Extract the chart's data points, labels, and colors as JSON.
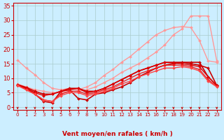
{
  "bg_color": "#cceeff",
  "grid_color": "#aacccc",
  "xlabel": "Vent moyen/en rafales ( km/h )",
  "xlabel_color": "#cc0000",
  "tick_color": "#cc0000",
  "xlim": [
    -0.5,
    23.5
  ],
  "ylim": [
    -1,
    36
  ],
  "yticks": [
    0,
    5,
    10,
    15,
    20,
    25,
    30,
    35
  ],
  "xticks": [
    0,
    1,
    2,
    3,
    4,
    5,
    6,
    7,
    8,
    9,
    10,
    11,
    12,
    13,
    14,
    15,
    16,
    17,
    18,
    19,
    20,
    21,
    22,
    23
  ],
  "lines": [
    {
      "x": [
        0,
        1,
        2,
        3,
        4,
        5,
        6,
        7,
        8,
        9,
        10,
        11,
        12,
        13,
        14,
        15,
        16,
        17,
        18,
        19,
        20,
        21,
        22,
        23
      ],
      "y": [
        16.2,
        13.5,
        11.2,
        8.5,
        6.5,
        6.0,
        6.5,
        6.0,
        7.0,
        8.5,
        11.0,
        13.0,
        15.5,
        17.5,
        20.0,
        22.5,
        25.0,
        26.5,
        27.5,
        27.8,
        27.5,
        23.0,
        16.0,
        15.5
      ],
      "color": "#ff9999",
      "lw": 1.0,
      "marker": "D",
      "ms": 2.0
    },
    {
      "x": [
        0,
        1,
        2,
        3,
        4,
        5,
        6,
        7,
        8,
        9,
        10,
        11,
        12,
        13,
        14,
        15,
        16,
        17,
        18,
        19,
        20,
        21,
        22,
        23
      ],
      "y": [
        8.0,
        7.0,
        6.0,
        5.5,
        5.0,
        5.0,
        5.5,
        5.5,
        6.0,
        7.0,
        8.5,
        10.0,
        12.0,
        13.5,
        15.0,
        17.0,
        19.0,
        21.5,
        25.0,
        27.0,
        31.5,
        31.5,
        31.5,
        16.0
      ],
      "color": "#ff9999",
      "lw": 1.0,
      "marker": "D",
      "ms": 2.0
    },
    {
      "x": [
        0,
        1,
        2,
        3,
        4,
        5,
        6,
        7,
        8,
        9,
        10,
        11,
        12,
        13,
        14,
        15,
        16,
        17,
        18,
        19,
        20,
        21,
        22,
        23
      ],
      "y": [
        7.5,
        6.5,
        4.5,
        2.0,
        1.5,
        5.5,
        6.0,
        3.0,
        2.5,
        4.5,
        5.0,
        6.0,
        7.0,
        8.5,
        10.5,
        12.0,
        13.5,
        14.5,
        15.0,
        15.5,
        15.5,
        15.5,
        10.5,
        7.5
      ],
      "color": "#cc0000",
      "lw": 1.2,
      "marker": "D",
      "ms": 2.0
    },
    {
      "x": [
        0,
        1,
        2,
        3,
        4,
        5,
        6,
        7,
        8,
        9,
        10,
        11,
        12,
        13,
        14,
        15,
        16,
        17,
        18,
        19,
        20,
        21,
        22,
        23
      ],
      "y": [
        7.8,
        6.8,
        5.5,
        4.5,
        4.5,
        5.5,
        6.5,
        6.5,
        5.5,
        5.5,
        6.5,
        8.0,
        9.5,
        11.0,
        12.5,
        13.5,
        14.5,
        15.5,
        15.5,
        15.5,
        15.0,
        14.5,
        13.5,
        7.5
      ],
      "color": "#cc0000",
      "lw": 1.2,
      "marker": "D",
      "ms": 2.0
    },
    {
      "x": [
        0,
        1,
        2,
        3,
        4,
        5,
        6,
        7,
        8,
        9,
        10,
        11,
        12,
        13,
        14,
        15,
        16,
        17,
        18,
        19,
        20,
        21,
        22,
        23
      ],
      "y": [
        7.5,
        6.5,
        5.0,
        4.0,
        4.5,
        5.5,
        6.0,
        6.5,
        5.0,
        5.5,
        6.5,
        8.0,
        9.5,
        11.0,
        12.5,
        13.5,
        14.5,
        15.5,
        15.2,
        15.0,
        14.5,
        14.0,
        10.5,
        7.5
      ],
      "color": "#dd0000",
      "lw": 1.0,
      "marker": "D",
      "ms": 2.0
    },
    {
      "x": [
        0,
        1,
        2,
        3,
        4,
        5,
        6,
        7,
        8,
        9,
        10,
        11,
        12,
        13,
        14,
        15,
        16,
        17,
        18,
        19,
        20,
        21,
        22,
        23
      ],
      "y": [
        7.5,
        6.0,
        4.5,
        2.5,
        2.0,
        4.5,
        5.5,
        5.5,
        4.5,
        5.0,
        6.0,
        7.0,
        8.5,
        10.0,
        11.5,
        12.5,
        13.5,
        14.5,
        14.5,
        14.5,
        14.0,
        13.0,
        9.5,
        7.2
      ],
      "color": "#ee2222",
      "lw": 1.0,
      "marker": "D",
      "ms": 2.0
    },
    {
      "x": [
        0,
        1,
        2,
        3,
        4,
        5,
        6,
        7,
        8,
        9,
        10,
        11,
        12,
        13,
        14,
        15,
        16,
        17,
        18,
        19,
        20,
        21,
        22,
        23
      ],
      "y": [
        7.5,
        6.0,
        4.5,
        2.5,
        2.0,
        4.0,
        5.0,
        5.0,
        4.0,
        4.5,
        5.5,
        6.5,
        8.0,
        9.0,
        10.5,
        11.5,
        12.5,
        13.5,
        13.5,
        14.0,
        13.5,
        12.5,
        9.0,
        7.0
      ],
      "color": "#ff4444",
      "lw": 1.0,
      "marker": "D",
      "ms": 2.0
    }
  ],
  "arrow_color": "#cc0000",
  "axis_fontsize": 6.5,
  "ytick_fontsize": 6,
  "xtick_fontsize": 5
}
